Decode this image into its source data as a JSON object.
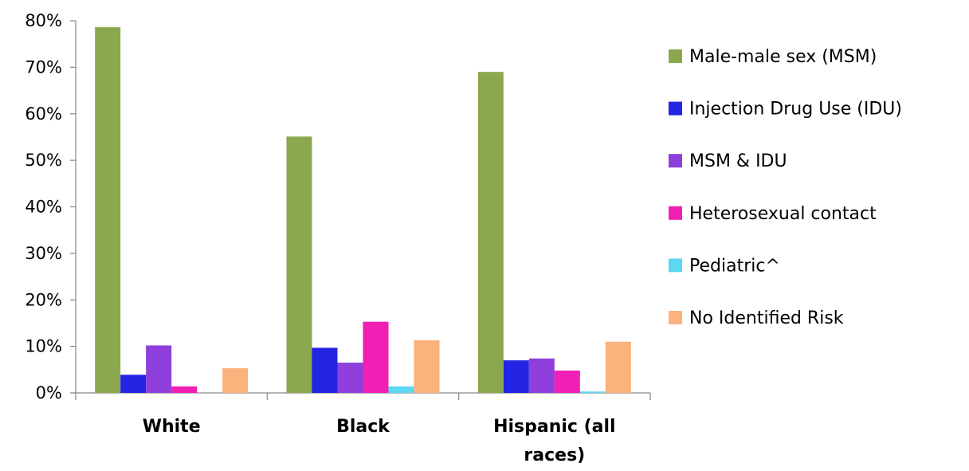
{
  "chart_data": {
    "type": "bar",
    "categories": [
      "White",
      "Black",
      "Hispanic (all races)"
    ],
    "series": [
      {
        "name": "Male-male sex (MSM)",
        "color": "#8BA84E",
        "values": [
          78.6,
          55.1,
          69.0
        ]
      },
      {
        "name": "Injection Drug Use (IDU)",
        "color": "#2424E4",
        "values": [
          3.9,
          9.7,
          7.0
        ]
      },
      {
        "name": "MSM & IDU",
        "color": "#8E3FDC",
        "values": [
          10.2,
          6.5,
          7.4
        ]
      },
      {
        "name": "Heterosexual contact",
        "color": "#F21FB4",
        "values": [
          1.4,
          15.3,
          4.8
        ]
      },
      {
        "name": "Pediatric^",
        "color": "#5AD7F1",
        "values": [
          0.0,
          1.4,
          0.3
        ]
      },
      {
        "name": "No Identified Risk",
        "color": "#FBB27C",
        "values": [
          5.3,
          11.3,
          11.0
        ]
      }
    ],
    "yticks": [
      "0%",
      "10%",
      "20%",
      "30%",
      "40%",
      "50%",
      "60%",
      "70%",
      "80%"
    ],
    "ylim": [
      0,
      80
    ],
    "legend_position": "right",
    "grid": false
  }
}
